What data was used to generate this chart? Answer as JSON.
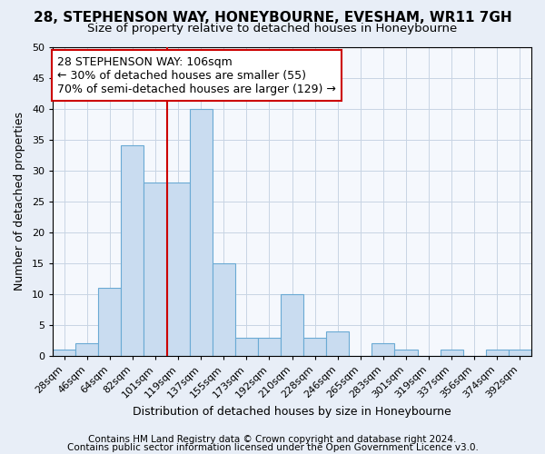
{
  "title1": "28, STEPHENSON WAY, HONEYBOURNE, EVESHAM, WR11 7GH",
  "title2": "Size of property relative to detached houses in Honeybourne",
  "xlabel": "Distribution of detached houses by size in Honeybourne",
  "ylabel": "Number of detached properties",
  "bin_labels": [
    "28sqm",
    "46sqm",
    "64sqm",
    "82sqm",
    "101sqm",
    "119sqm",
    "137sqm",
    "155sqm",
    "173sqm",
    "192sqm",
    "210sqm",
    "228sqm",
    "246sqm",
    "265sqm",
    "283sqm",
    "301sqm",
    "319sqm",
    "337sqm",
    "356sqm",
    "374sqm",
    "392sqm"
  ],
  "bar_heights": [
    1,
    2,
    11,
    34,
    28,
    28,
    40,
    15,
    3,
    3,
    10,
    3,
    4,
    0,
    2,
    1,
    0,
    1,
    0,
    1,
    1
  ],
  "bar_color": "#c9dcf0",
  "bar_edge_color": "#6aaad4",
  "vline_color": "#cc0000",
  "annotation_line1": "28 STEPHENSON WAY: 106sqm",
  "annotation_line2": "← 30% of detached houses are smaller (55)",
  "annotation_line3": "70% of semi-detached houses are larger (129) →",
  "annotation_box_facecolor": "#ffffff",
  "annotation_box_edgecolor": "#cc0000",
  "ylim": [
    0,
    50
  ],
  "yticks": [
    0,
    5,
    10,
    15,
    20,
    25,
    30,
    35,
    40,
    45,
    50
  ],
  "bg_color": "#e8eef7",
  "plot_bg_color": "#f5f8fd",
  "title1_fontsize": 11,
  "title2_fontsize": 9.5,
  "axis_label_fontsize": 9,
  "tick_fontsize": 8,
  "annotation_fontsize": 9,
  "footer1": "Contains HM Land Registry data © Crown copyright and database right 2024.",
  "footer2": "Contains public sector information licensed under the Open Government Licence v3.0.",
  "footer_fontsize": 7.5,
  "grid_color": "#c8d4e4"
}
